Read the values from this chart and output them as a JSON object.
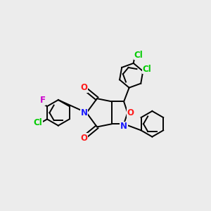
{
  "background_color": "#ececec",
  "figsize": [
    3.0,
    3.0
  ],
  "dpi": 100,
  "bond_color": "black",
  "bond_width": 1.4,
  "atom_colors": {
    "N": "#1a1aff",
    "O": "#ff1a1a",
    "Cl": "#00cc00",
    "F": "#cc00cc"
  },
  "font_size": 8.5
}
